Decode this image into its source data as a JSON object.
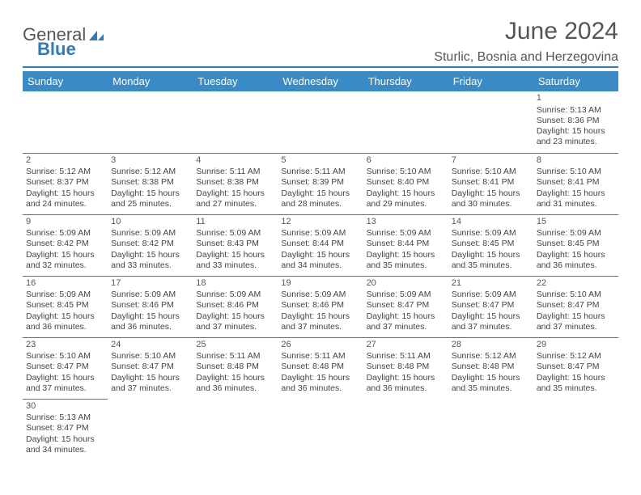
{
  "logo": {
    "text1": "General",
    "text2": "Blue"
  },
  "title": "June 2024",
  "location": "Sturlic, Bosnia and Herzegovina",
  "colors": {
    "header_bg": "#3a8ac6",
    "border": "#2b7bbf",
    "text": "#444444",
    "title": "#555555",
    "bg": "#ffffff"
  },
  "weekdays": [
    "Sunday",
    "Monday",
    "Tuesday",
    "Wednesday",
    "Thursday",
    "Friday",
    "Saturday"
  ],
  "labels": {
    "sunrise": "Sunrise:",
    "sunset": "Sunset:",
    "daylight": "Daylight:"
  },
  "weeks": [
    [
      null,
      null,
      null,
      null,
      null,
      null,
      {
        "d": "1",
        "sr": "5:13 AM",
        "ss": "8:36 PM",
        "dl": "15 hours and 23 minutes."
      }
    ],
    [
      {
        "d": "2",
        "sr": "5:12 AM",
        "ss": "8:37 PM",
        "dl": "15 hours and 24 minutes."
      },
      {
        "d": "3",
        "sr": "5:12 AM",
        "ss": "8:38 PM",
        "dl": "15 hours and 25 minutes."
      },
      {
        "d": "4",
        "sr": "5:11 AM",
        "ss": "8:38 PM",
        "dl": "15 hours and 27 minutes."
      },
      {
        "d": "5",
        "sr": "5:11 AM",
        "ss": "8:39 PM",
        "dl": "15 hours and 28 minutes."
      },
      {
        "d": "6",
        "sr": "5:10 AM",
        "ss": "8:40 PM",
        "dl": "15 hours and 29 minutes."
      },
      {
        "d": "7",
        "sr": "5:10 AM",
        "ss": "8:41 PM",
        "dl": "15 hours and 30 minutes."
      },
      {
        "d": "8",
        "sr": "5:10 AM",
        "ss": "8:41 PM",
        "dl": "15 hours and 31 minutes."
      }
    ],
    [
      {
        "d": "9",
        "sr": "5:09 AM",
        "ss": "8:42 PM",
        "dl": "15 hours and 32 minutes."
      },
      {
        "d": "10",
        "sr": "5:09 AM",
        "ss": "8:42 PM",
        "dl": "15 hours and 33 minutes."
      },
      {
        "d": "11",
        "sr": "5:09 AM",
        "ss": "8:43 PM",
        "dl": "15 hours and 33 minutes."
      },
      {
        "d": "12",
        "sr": "5:09 AM",
        "ss": "8:44 PM",
        "dl": "15 hours and 34 minutes."
      },
      {
        "d": "13",
        "sr": "5:09 AM",
        "ss": "8:44 PM",
        "dl": "15 hours and 35 minutes."
      },
      {
        "d": "14",
        "sr": "5:09 AM",
        "ss": "8:45 PM",
        "dl": "15 hours and 35 minutes."
      },
      {
        "d": "15",
        "sr": "5:09 AM",
        "ss": "8:45 PM",
        "dl": "15 hours and 36 minutes."
      }
    ],
    [
      {
        "d": "16",
        "sr": "5:09 AM",
        "ss": "8:45 PM",
        "dl": "15 hours and 36 minutes."
      },
      {
        "d": "17",
        "sr": "5:09 AM",
        "ss": "8:46 PM",
        "dl": "15 hours and 36 minutes."
      },
      {
        "d": "18",
        "sr": "5:09 AM",
        "ss": "8:46 PM",
        "dl": "15 hours and 37 minutes."
      },
      {
        "d": "19",
        "sr": "5:09 AM",
        "ss": "8:46 PM",
        "dl": "15 hours and 37 minutes."
      },
      {
        "d": "20",
        "sr": "5:09 AM",
        "ss": "8:47 PM",
        "dl": "15 hours and 37 minutes."
      },
      {
        "d": "21",
        "sr": "5:09 AM",
        "ss": "8:47 PM",
        "dl": "15 hours and 37 minutes."
      },
      {
        "d": "22",
        "sr": "5:10 AM",
        "ss": "8:47 PM",
        "dl": "15 hours and 37 minutes."
      }
    ],
    [
      {
        "d": "23",
        "sr": "5:10 AM",
        "ss": "8:47 PM",
        "dl": "15 hours and 37 minutes."
      },
      {
        "d": "24",
        "sr": "5:10 AM",
        "ss": "8:47 PM",
        "dl": "15 hours and 37 minutes."
      },
      {
        "d": "25",
        "sr": "5:11 AM",
        "ss": "8:48 PM",
        "dl": "15 hours and 36 minutes."
      },
      {
        "d": "26",
        "sr": "5:11 AM",
        "ss": "8:48 PM",
        "dl": "15 hours and 36 minutes."
      },
      {
        "d": "27",
        "sr": "5:11 AM",
        "ss": "8:48 PM",
        "dl": "15 hours and 36 minutes."
      },
      {
        "d": "28",
        "sr": "5:12 AM",
        "ss": "8:48 PM",
        "dl": "15 hours and 35 minutes."
      },
      {
        "d": "29",
        "sr": "5:12 AM",
        "ss": "8:47 PM",
        "dl": "15 hours and 35 minutes."
      }
    ],
    [
      {
        "d": "30",
        "sr": "5:13 AM",
        "ss": "8:47 PM",
        "dl": "15 hours and 34 minutes."
      },
      null,
      null,
      null,
      null,
      null,
      null
    ]
  ]
}
